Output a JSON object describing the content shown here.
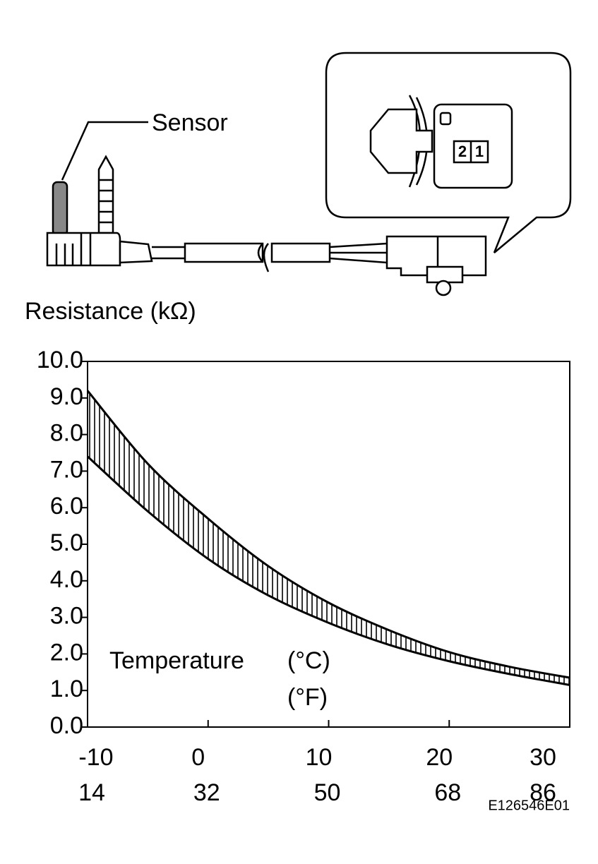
{
  "sensor_label": "Sensor",
  "connector_pins": [
    "2",
    "1"
  ],
  "chart_data": {
    "type": "band",
    "y_label": "Resistance (kΩ)",
    "x_label": "Temperature",
    "x_unit_c": "(°C)",
    "x_unit_f": "(°F)",
    "x": [
      -10,
      -5,
      0,
      5,
      10,
      15,
      20,
      25,
      30
    ],
    "series": [
      {
        "color": "#000000",
        "values": [
          9.2,
          7.2,
          5.7,
          4.4,
          3.4,
          2.65,
          2.05,
          1.65,
          1.35
        ]
      },
      {
        "color": "#000000",
        "values": [
          7.4,
          5.9,
          4.6,
          3.6,
          2.85,
          2.25,
          1.8,
          1.45,
          1.15
        ]
      }
    ],
    "xlim": [
      -10,
      30
    ],
    "xticks": [
      -10,
      0,
      10,
      20,
      30
    ],
    "xticks_f": [
      14,
      32,
      50,
      68,
      86
    ],
    "ylim": [
      0,
      10
    ],
    "yticks": [
      {
        "value": 0,
        "label": "0.0"
      },
      {
        "value": 1,
        "label": "1.0"
      },
      {
        "value": 2,
        "label": "2.0"
      },
      {
        "value": 3,
        "label": "3.0"
      },
      {
        "value": 4,
        "label": "4.0"
      },
      {
        "value": 5,
        "label": "5.0"
      },
      {
        "value": 6,
        "label": "6.0"
      },
      {
        "value": 7,
        "label": "7.0"
      },
      {
        "value": 8,
        "label": "8.0"
      },
      {
        "value": 9,
        "label": "9.0"
      },
      {
        "value": 10,
        "label": "10.0"
      }
    ],
    "hatch": true
  },
  "figure_id": "E126546E01"
}
